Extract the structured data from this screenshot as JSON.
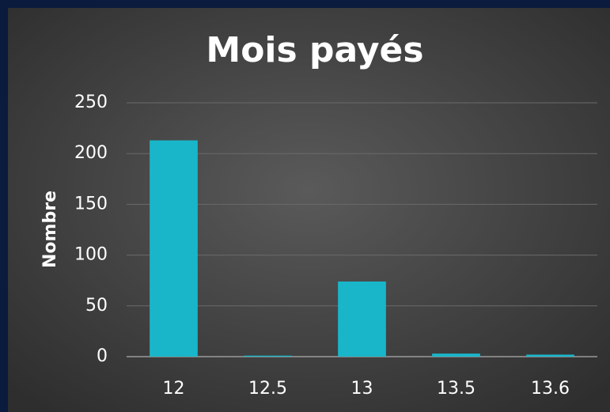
{
  "chart_data": {
    "type": "bar",
    "title": "Mois payés",
    "y_label": "Nombre",
    "categories": [
      "12",
      "12.5",
      "13",
      "13.5",
      "13.6"
    ],
    "values": [
      213,
      1,
      74,
      3,
      2
    ],
    "color": "#19b6ca",
    "ylim": [
      0,
      250
    ],
    "yticks": [
      0,
      50,
      100,
      150,
      200,
      250
    ],
    "grid": true
  }
}
